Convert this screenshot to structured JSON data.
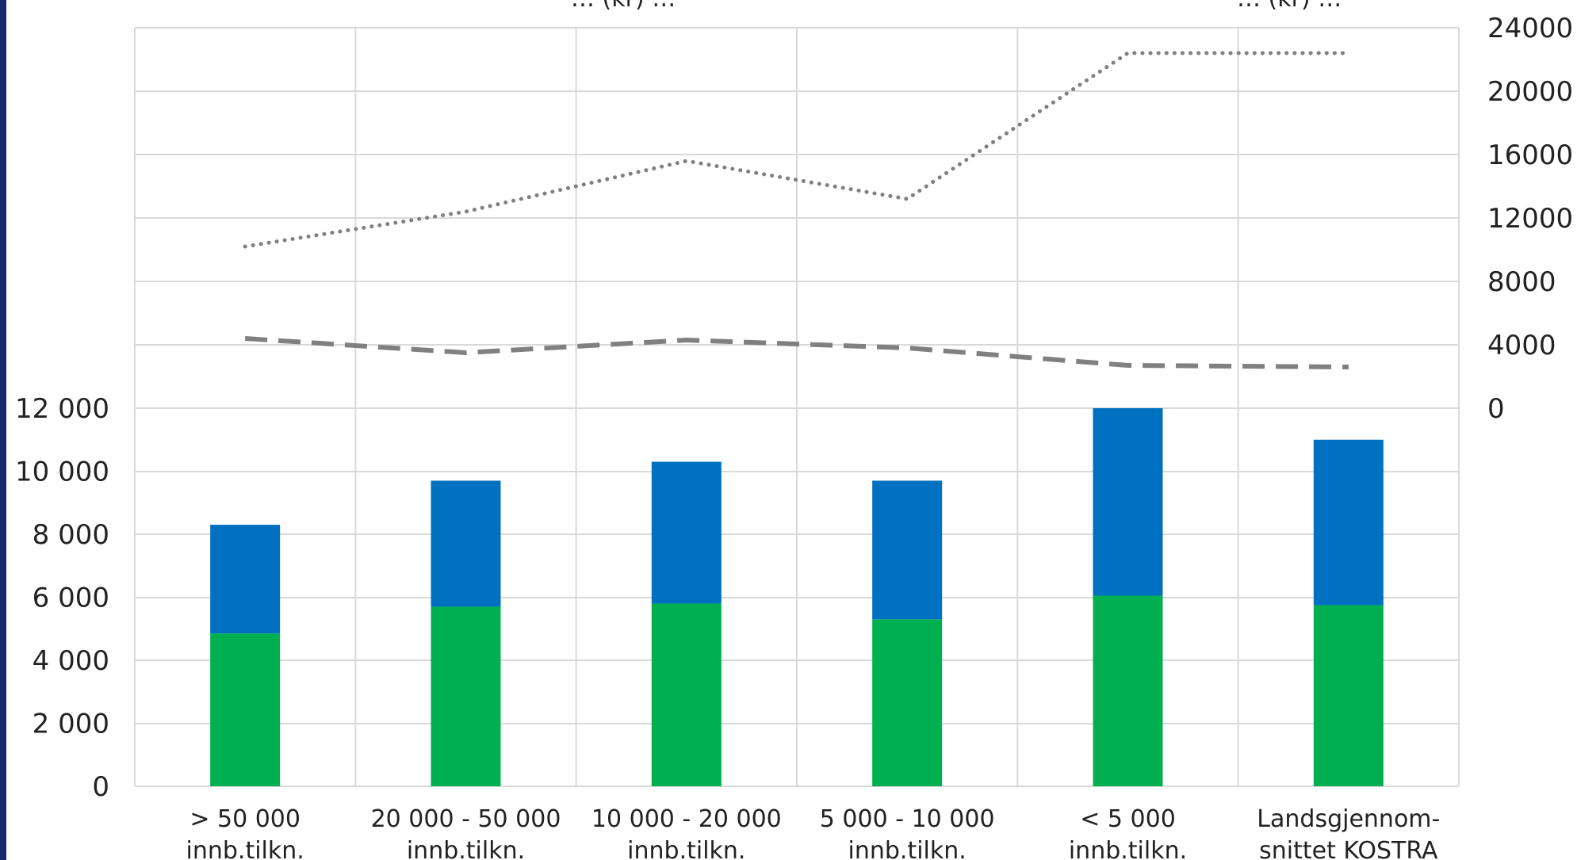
{
  "colors": {
    "left_border": "#1b2a6b",
    "grid": "#d9d9d9",
    "series_bottom": "#00b050",
    "series_top": "#0070c0",
    "line": "#808080"
  },
  "legend": {
    "left_text": "… (kr) …",
    "right_text": "… (kr) …"
  },
  "chart_data": {
    "type": "bar",
    "categories": [
      [
        "> 50 000",
        "innb.tilkn."
      ],
      [
        "20 000 - 50 000",
        "innb.tilkn."
      ],
      [
        "10 000 - 20 000",
        "innb.tilkn."
      ],
      [
        "5 000 - 10 000",
        "innb.tilkn."
      ],
      [
        "< 5 000",
        "innb.tilkn."
      ],
      [
        "Landsgjennom-",
        "snittet KOSTRA"
      ]
    ],
    "stacked": true,
    "series": [
      {
        "values": [
          4850,
          5700,
          5800,
          5300,
          6050,
          5750
        ]
      },
      {
        "values": [
          3450,
          4000,
          4500,
          4400,
          5950,
          5250
        ]
      }
    ],
    "left_axis": {
      "ylim": [
        0,
        12000
      ],
      "tick_values": [
        0,
        2000,
        4000,
        6000,
        8000,
        10000,
        12000
      ],
      "tick_labels": [
        "0",
        "2 000",
        "4 000",
        "6 000",
        "8 000",
        "10 000",
        "12 000"
      ]
    },
    "right_axis": {
      "ylim": [
        0,
        24000
      ],
      "tick_values": [
        0,
        4000,
        8000,
        12000,
        16000,
        20000,
        24000
      ],
      "tick_labels": [
        "0",
        "4000",
        "8000",
        "12000",
        "16000",
        "20000",
        "24000"
      ]
    },
    "lines": [
      {
        "style": "dotted",
        "axis": "right",
        "values": [
          10200,
          12400,
          15600,
          13200,
          22400,
          22400
        ]
      },
      {
        "style": "dashed",
        "axis": "right",
        "values": [
          4400,
          3500,
          4300,
          3800,
          2700,
          2600
        ]
      }
    ],
    "grid": true
  }
}
